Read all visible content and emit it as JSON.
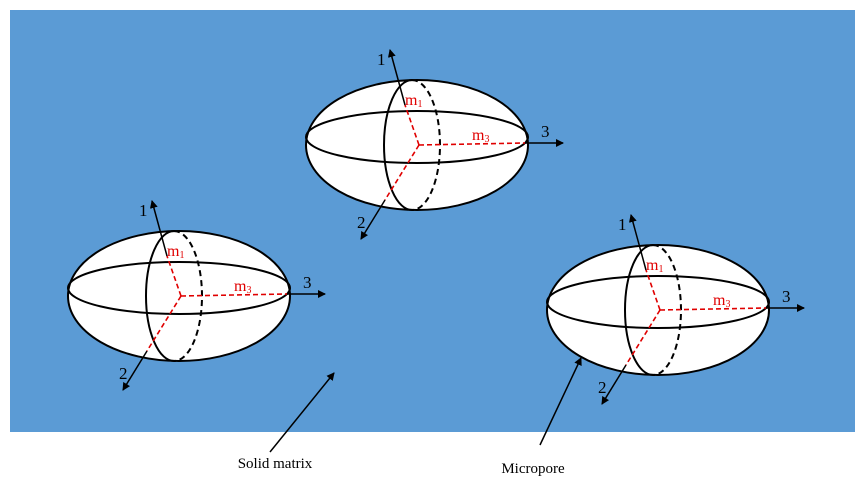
{
  "ellipsoids": [
    {
      "axis_labels": [
        "1",
        "2",
        "3"
      ],
      "m1": {
        "base": "m",
        "sub": "1"
      },
      "m3": {
        "base": "m",
        "sub": "3"
      }
    },
    {
      "axis_labels": [
        "1",
        "2",
        "3"
      ],
      "m1": {
        "base": "m",
        "sub": "1"
      },
      "m3": {
        "base": "m",
        "sub": "3"
      }
    },
    {
      "axis_labels": [
        "1",
        "2",
        "3"
      ],
      "m1": {
        "base": "m",
        "sub": "1"
      },
      "m3": {
        "base": "m",
        "sub": "3"
      }
    }
  ],
  "labels": {
    "solid_matrix": "Solid matrix",
    "micropore": "Micropore"
  }
}
